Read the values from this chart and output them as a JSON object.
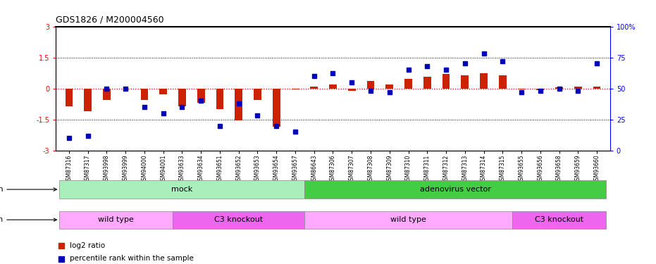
{
  "title": "GDS1826 / M200004560",
  "samples": [
    "GSM87316",
    "GSM87317",
    "GSM93998",
    "GSM93999",
    "GSM94000",
    "GSM94001",
    "GSM93633",
    "GSM93634",
    "GSM93651",
    "GSM93652",
    "GSM93653",
    "GSM93654",
    "GSM93657",
    "GSM86643",
    "GSM87306",
    "GSM87307",
    "GSM87308",
    "GSM87309",
    "GSM87310",
    "GSM87311",
    "GSM87312",
    "GSM87313",
    "GSM87314",
    "GSM87315",
    "GSM93655",
    "GSM93656",
    "GSM93658",
    "GSM93659",
    "GSM93660"
  ],
  "log2_ratio": [
    -0.85,
    -1.1,
    -0.55,
    0.0,
    -0.55,
    -0.3,
    -0.85,
    -0.7,
    -1.0,
    -1.55,
    -0.55,
    -1.85,
    -0.05,
    0.1,
    0.2,
    -0.12,
    0.35,
    0.2,
    0.45,
    0.55,
    0.7,
    0.65,
    0.75,
    0.65,
    -0.05,
    -0.08,
    0.05,
    0.1,
    0.08
  ],
  "percentile": [
    10,
    12,
    50,
    50,
    35,
    30,
    35,
    40,
    20,
    38,
    28,
    20,
    15,
    60,
    62,
    55,
    48,
    47,
    65,
    68,
    65,
    70,
    78,
    72,
    47,
    48,
    50,
    48,
    70
  ],
  "infection_groups": [
    {
      "label": "mock",
      "start": 0,
      "end": 13,
      "color": "#AAEEBB"
    },
    {
      "label": "adenovirus vector",
      "start": 13,
      "end": 29,
      "color": "#44CC44"
    }
  ],
  "genotype_groups": [
    {
      "label": "wild type",
      "start": 0,
      "end": 6,
      "color": "#FFAAFF"
    },
    {
      "label": "C3 knockout",
      "start": 6,
      "end": 13,
      "color": "#EE66EE"
    },
    {
      "label": "wild type",
      "start": 13,
      "end": 24,
      "color": "#FFAAFF"
    },
    {
      "label": "C3 knockout",
      "start": 24,
      "end": 29,
      "color": "#EE66EE"
    }
  ],
  "ylim": [
    -3,
    3
  ],
  "bar_color": "#CC2200",
  "dot_color": "#0000BB",
  "zero_line_color": "#CC0000",
  "dotted_line_y": [
    1.5,
    -1.5
  ],
  "background_color": "#ffffff",
  "bar_width": 0.4,
  "dot_size": 5
}
